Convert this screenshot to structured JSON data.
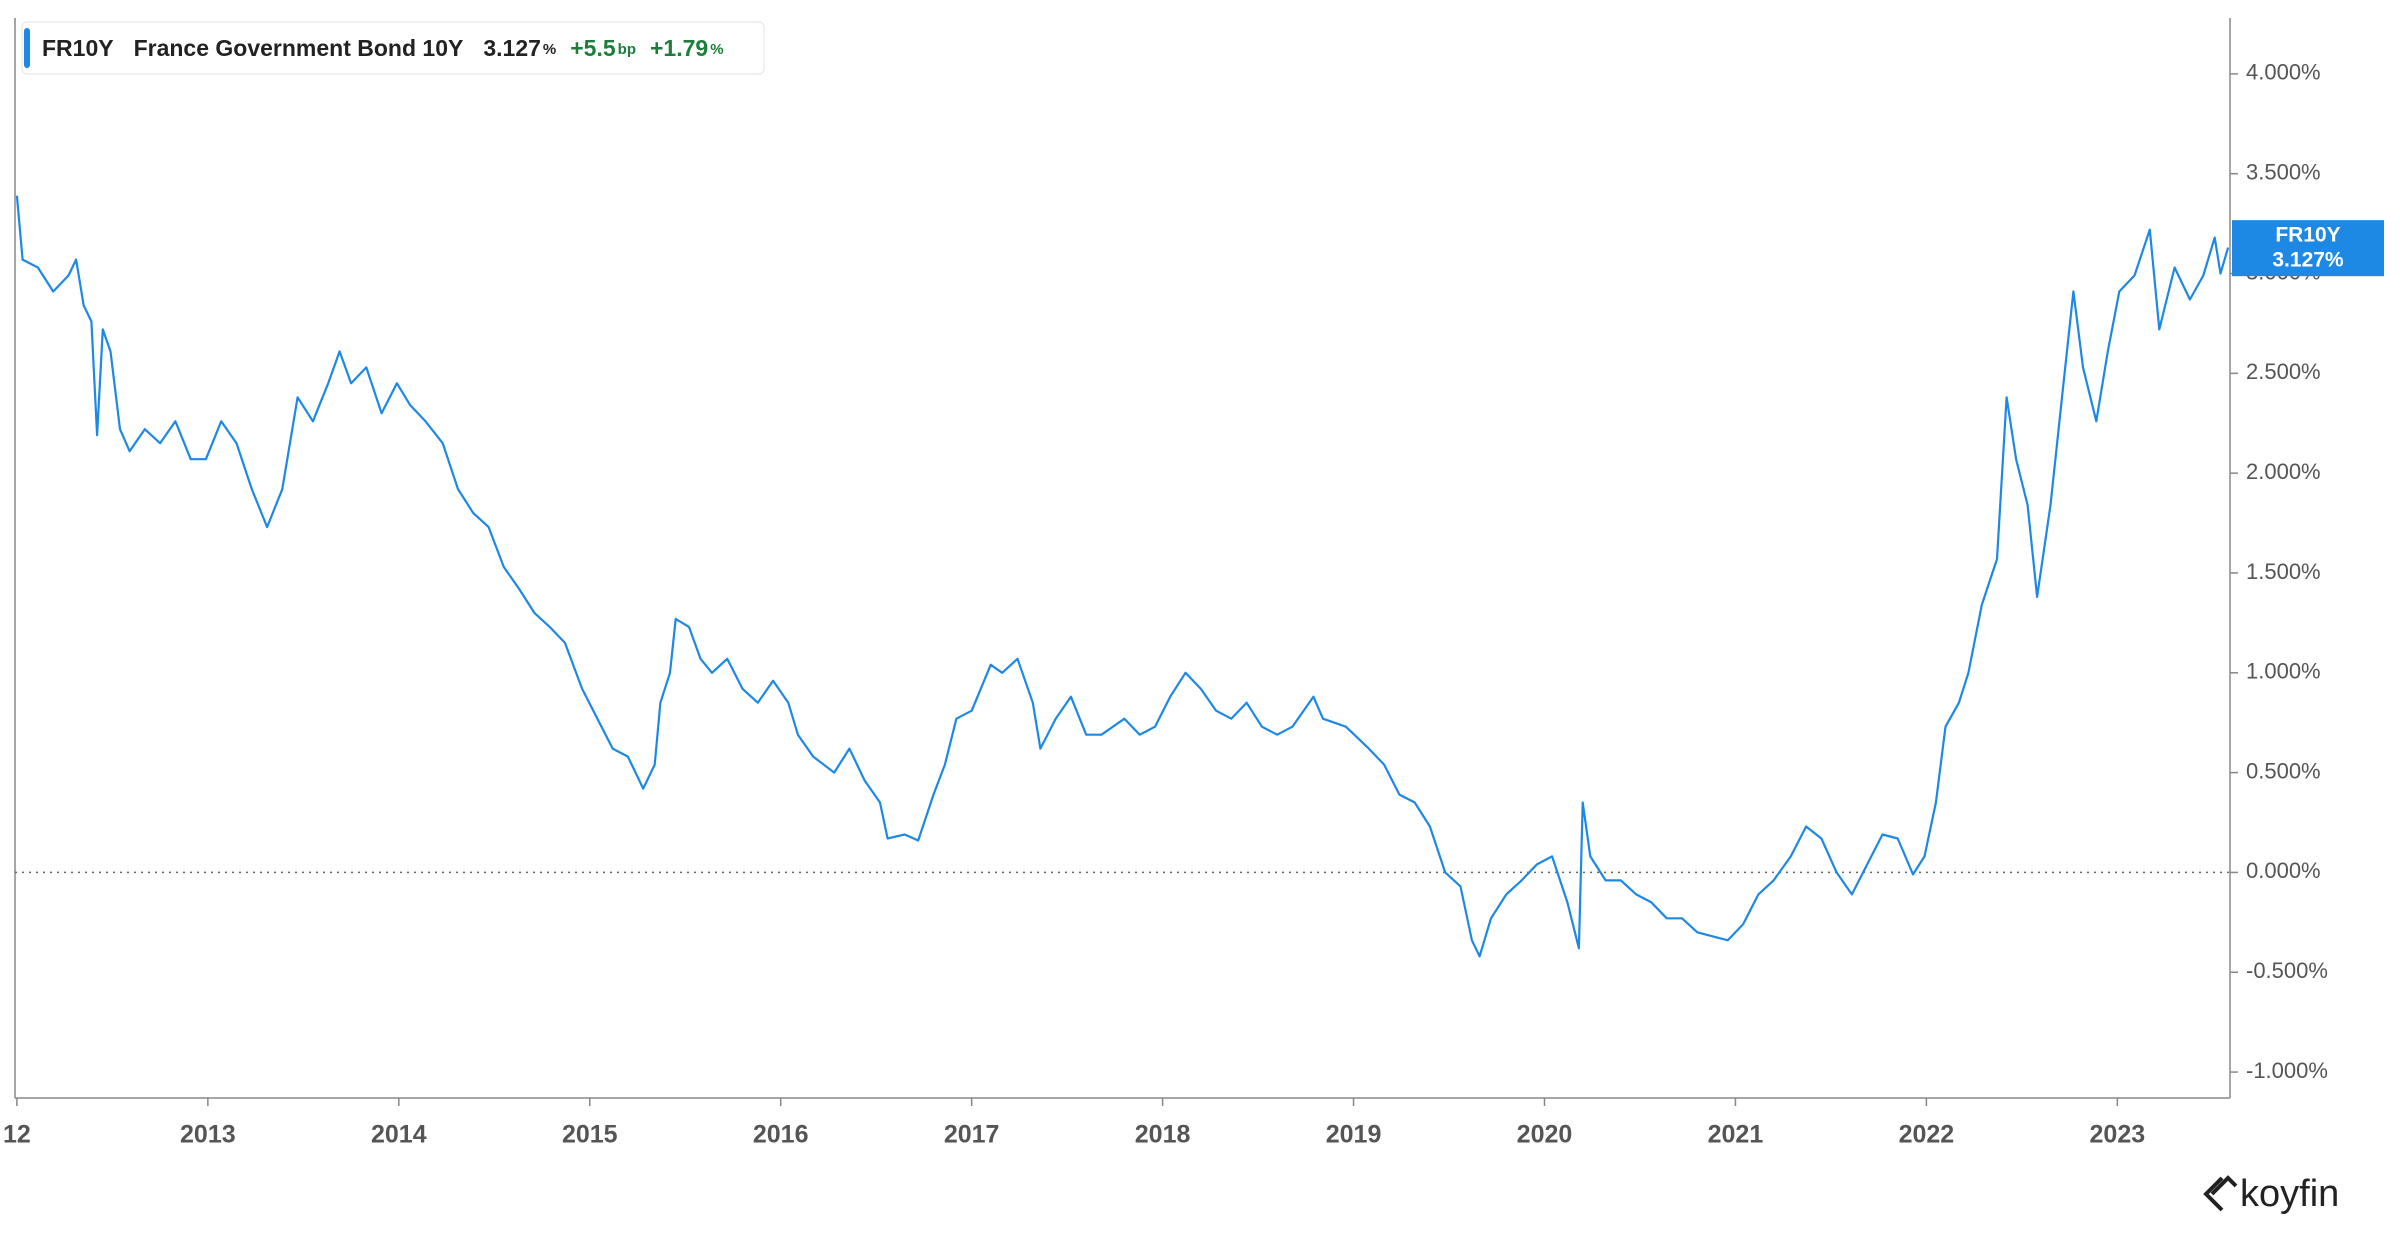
{
  "header": {
    "ticker": "FR10Y",
    "name": "France Government Bond 10Y",
    "price": "3.127",
    "price_unit": "%",
    "change": "+5.5",
    "change_unit": "bp",
    "change_pct": "+1.79",
    "change_pct_unit": "%"
  },
  "brand": "koyfin",
  "chart_data": {
    "type": "line",
    "x": [
      2012.0,
      2012.03,
      2012.11,
      2012.19,
      2012.27,
      2012.31,
      2012.35,
      2012.39,
      2012.42,
      2012.45,
      2012.49,
      2012.54,
      2012.59,
      2012.67,
      2012.75,
      2012.83,
      2012.91,
      2012.99,
      2013.07,
      2013.15,
      2013.23,
      2013.31,
      2013.39,
      2013.47,
      2013.55,
      2013.63,
      2013.69,
      2013.75,
      2013.83,
      2013.91,
      2013.99,
      2014.06,
      2014.14,
      2014.23,
      2014.31,
      2014.39,
      2014.47,
      2014.55,
      2014.63,
      2014.71,
      2014.79,
      2014.87,
      2014.96,
      2015.04,
      2015.12,
      2015.2,
      2015.28,
      2015.34,
      2015.37,
      2015.42,
      2015.45,
      2015.52,
      2015.58,
      2015.64,
      2015.72,
      2015.8,
      2015.88,
      2015.96,
      2016.04,
      2016.09,
      2016.17,
      2016.28,
      2016.36,
      2016.44,
      2016.52,
      2016.56,
      2016.65,
      2016.72,
      2016.8,
      2016.86,
      2016.92,
      2017.0,
      2017.1,
      2017.16,
      2017.24,
      2017.32,
      2017.36,
      2017.44,
      2017.52,
      2017.6,
      2017.68,
      2017.8,
      2017.88,
      2017.96,
      2018.04,
      2018.12,
      2018.2,
      2018.28,
      2018.36,
      2018.44,
      2018.52,
      2018.6,
      2018.68,
      2018.79,
      2018.84,
      2018.96,
      2019.08,
      2019.16,
      2019.24,
      2019.32,
      2019.4,
      2019.48,
      2019.56,
      2019.62,
      2019.66,
      2019.72,
      2019.8,
      2019.88,
      2019.96,
      2020.04,
      2020.12,
      2020.18,
      2020.2,
      2020.24,
      2020.32,
      2020.4,
      2020.48,
      2020.56,
      2020.64,
      2020.72,
      2020.8,
      2020.88,
      2020.96,
      2021.04,
      2021.12,
      2021.2,
      2021.29,
      2021.37,
      2021.45,
      2021.53,
      2021.61,
      2021.69,
      2021.77,
      2021.85,
      2021.93,
      2021.99,
      2022.05,
      2022.1,
      2022.17,
      2022.22,
      2022.29,
      2022.37,
      2022.42,
      2022.47,
      2022.53,
      2022.58,
      2022.65,
      2022.71,
      2022.77,
      2022.82,
      2022.89,
      2022.95,
      2023.01,
      2023.09,
      2023.17,
      2023.22,
      2023.3,
      2023.38,
      2023.45,
      2023.51,
      2023.54,
      2023.58
    ],
    "series": [
      {
        "name": "FR10Y",
        "color": "#1e88e5",
        "values": [
          3.39,
          3.07,
          3.03,
          2.91,
          2.99,
          3.07,
          2.84,
          2.76,
          2.19,
          2.72,
          2.61,
          2.22,
          2.11,
          2.22,
          2.15,
          2.26,
          2.07,
          2.07,
          2.26,
          2.15,
          1.92,
          1.73,
          1.92,
          2.38,
          2.26,
          2.45,
          2.61,
          2.45,
          2.53,
          2.3,
          2.45,
          2.34,
          2.26,
          2.15,
          1.92,
          1.8,
          1.73,
          1.53,
          1.42,
          1.3,
          1.23,
          1.15,
          0.92,
          0.77,
          0.62,
          0.58,
          0.42,
          0.54,
          0.85,
          1.0,
          1.27,
          1.23,
          1.07,
          1.0,
          1.07,
          0.92,
          0.85,
          0.96,
          0.85,
          0.69,
          0.58,
          0.5,
          0.62,
          0.46,
          0.35,
          0.17,
          0.19,
          0.16,
          0.39,
          0.54,
          0.77,
          0.81,
          1.04,
          1.0,
          1.07,
          0.85,
          0.62,
          0.77,
          0.88,
          0.69,
          0.69,
          0.77,
          0.69,
          0.73,
          0.88,
          1.0,
          0.92,
          0.81,
          0.77,
          0.85,
          0.73,
          0.69,
          0.73,
          0.88,
          0.77,
          0.73,
          0.62,
          0.54,
          0.39,
          0.35,
          0.23,
          0.0,
          -0.07,
          -0.34,
          -0.42,
          -0.23,
          -0.11,
          -0.04,
          0.04,
          0.08,
          -0.15,
          -0.38,
          0.35,
          0.08,
          -0.04,
          -0.04,
          -0.11,
          -0.15,
          -0.23,
          -0.23,
          -0.3,
          -0.32,
          -0.34,
          -0.26,
          -0.11,
          -0.04,
          0.08,
          0.23,
          0.17,
          0.0,
          -0.11,
          0.04,
          0.19,
          0.17,
          -0.01,
          0.08,
          0.35,
          0.73,
          0.85,
          1.0,
          1.34,
          1.57,
          2.38,
          2.07,
          1.84,
          1.38,
          1.84,
          2.38,
          2.91,
          2.53,
          2.26,
          2.61,
          2.91,
          2.99,
          3.22,
          2.72,
          3.03,
          2.87,
          2.99,
          3.18,
          3.0,
          3.13
        ]
      }
    ],
    "last_value": 3.127,
    "last_label": "3.127%",
    "xlim": [
      2011.99,
      2023.59
    ],
    "xticks": [
      {
        "value": 2012,
        "label": "12"
      },
      2013,
      2014,
      2015,
      2016,
      2017,
      2018,
      2019,
      2020,
      2021,
      2022,
      2023
    ],
    "ylim": [
      -1.13,
      4.28
    ],
    "yticks": [
      {
        "value": -1,
        "label": "-1.000%"
      },
      {
        "value": -0.5,
        "label": "-0.500%"
      },
      {
        "value": 0,
        "label": "0.000%"
      },
      {
        "value": 0.5,
        "label": "0.500%"
      },
      {
        "value": 1,
        "label": "1.000%"
      },
      {
        "value": 1.5,
        "label": "1.500%"
      },
      {
        "value": 2,
        "label": "2.000%"
      },
      {
        "value": 2.5,
        "label": "2.500%"
      },
      {
        "value": 3,
        "label": "3.000%"
      },
      {
        "value": 3.5,
        "label": "3.500%"
      },
      {
        "value": 4,
        "label": "4.000%"
      }
    ],
    "zero_line": true,
    "grid": false
  }
}
